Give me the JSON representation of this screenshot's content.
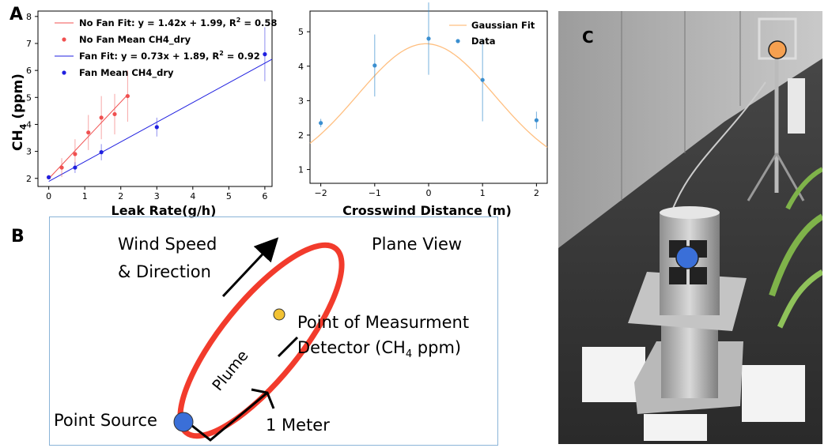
{
  "panels": {
    "a": "A",
    "b": "B",
    "c": "C"
  },
  "colors": {
    "nofan": "#f05050",
    "fan": "#2020e0",
    "gauss_fit": "#ffbf80",
    "gauss_data": "#3b8fd0",
    "plume": "#f23b2c",
    "source": "#3a6fd8",
    "detector": "#f2c233",
    "frame": "#8ab4d8"
  },
  "chart_data": [
    {
      "type": "scatter",
      "xlabel": "Leak Rate(g/h)",
      "ylabel": "CH4 (ppm)",
      "xlim": [
        -0.3,
        6.2
      ],
      "ylim": [
        1.7,
        8.2
      ],
      "xticks": [
        0,
        1,
        2,
        3,
        4,
        5,
        6
      ],
      "yticks": [
        2,
        3,
        4,
        5,
        6,
        7,
        8
      ],
      "grid": false,
      "legend_position": "top-left",
      "legend": [
        "No Fan Fit: y = 1.42x + 1.99, R2 = 0.58",
        "No Fan Mean CH4_dry",
        "Fan Fit: y = 0.73x + 1.89, R2 = 0.92",
        "Fan Mean CH4_dry"
      ],
      "series": [
        {
          "name": "No Fan Mean CH4_dry",
          "x": [
            0,
            0.36,
            0.73,
            1.1,
            1.46,
            1.83,
            2.19
          ],
          "y": [
            2.04,
            2.4,
            2.9,
            3.7,
            4.25,
            4.38,
            5.05
          ],
          "err": [
            0.05,
            0.35,
            0.55,
            0.65,
            0.8,
            0.75,
            0.95
          ]
        },
        {
          "name": "Fan Mean CH4_dry",
          "x": [
            0,
            0.73,
            1.46,
            3.0,
            6.0
          ],
          "y": [
            2.04,
            2.4,
            2.97,
            3.9,
            6.6
          ],
          "err": [
            0.05,
            0.2,
            0.3,
            0.35,
            1.0
          ]
        }
      ],
      "fits": [
        {
          "name": "No Fan Fit",
          "slope": 1.42,
          "intercept": 1.99,
          "x_range": [
            0,
            2.19
          ]
        },
        {
          "name": "Fan Fit",
          "slope": 0.73,
          "intercept": 1.89,
          "x_range": [
            0,
            6.2
          ]
        }
      ]
    },
    {
      "type": "scatter",
      "xlabel": "Crosswind Distance (m)",
      "ylabel": "",
      "xlim": [
        -2.2,
        2.2
      ],
      "ylim": [
        0.6,
        5.6
      ],
      "xticks": [
        -2,
        -1,
        0,
        1,
        2
      ],
      "yticks": [
        1,
        2,
        3,
        4,
        5
      ],
      "grid": false,
      "legend_position": "top-right",
      "legend": [
        "Gaussian Fit",
        "Data"
      ],
      "series": [
        {
          "name": "Data",
          "x": [
            -2,
            -1,
            0,
            1,
            2
          ],
          "y": [
            2.35,
            4.02,
            4.8,
            3.6,
            2.43
          ],
          "err": [
            0.12,
            0.9,
            1.05,
            1.2,
            0.25
          ]
        }
      ],
      "fit": {
        "name": "Gaussian Fit",
        "peak": 4.65,
        "center": -0.05,
        "sigma": 1.8,
        "offset": 0.85
      }
    }
  ],
  "diagram": {
    "wind_label_line1": "Wind Speed",
    "wind_label_line2": "& Direction",
    "view_label": "Plane View",
    "plume_label": "Plume",
    "measure_label": "Point of Measurment",
    "detector_label_prefix": "Detector (CH",
    "detector_label_sub": "4",
    "detector_label_suffix": " ppm)",
    "source_label": "Point Source",
    "distance_label": "1 Meter"
  },
  "photo": {
    "markers": [
      {
        "name": "fan-marker",
        "color": "#3a6fd8"
      },
      {
        "name": "detector-marker",
        "color": "#f5a050"
      }
    ]
  }
}
